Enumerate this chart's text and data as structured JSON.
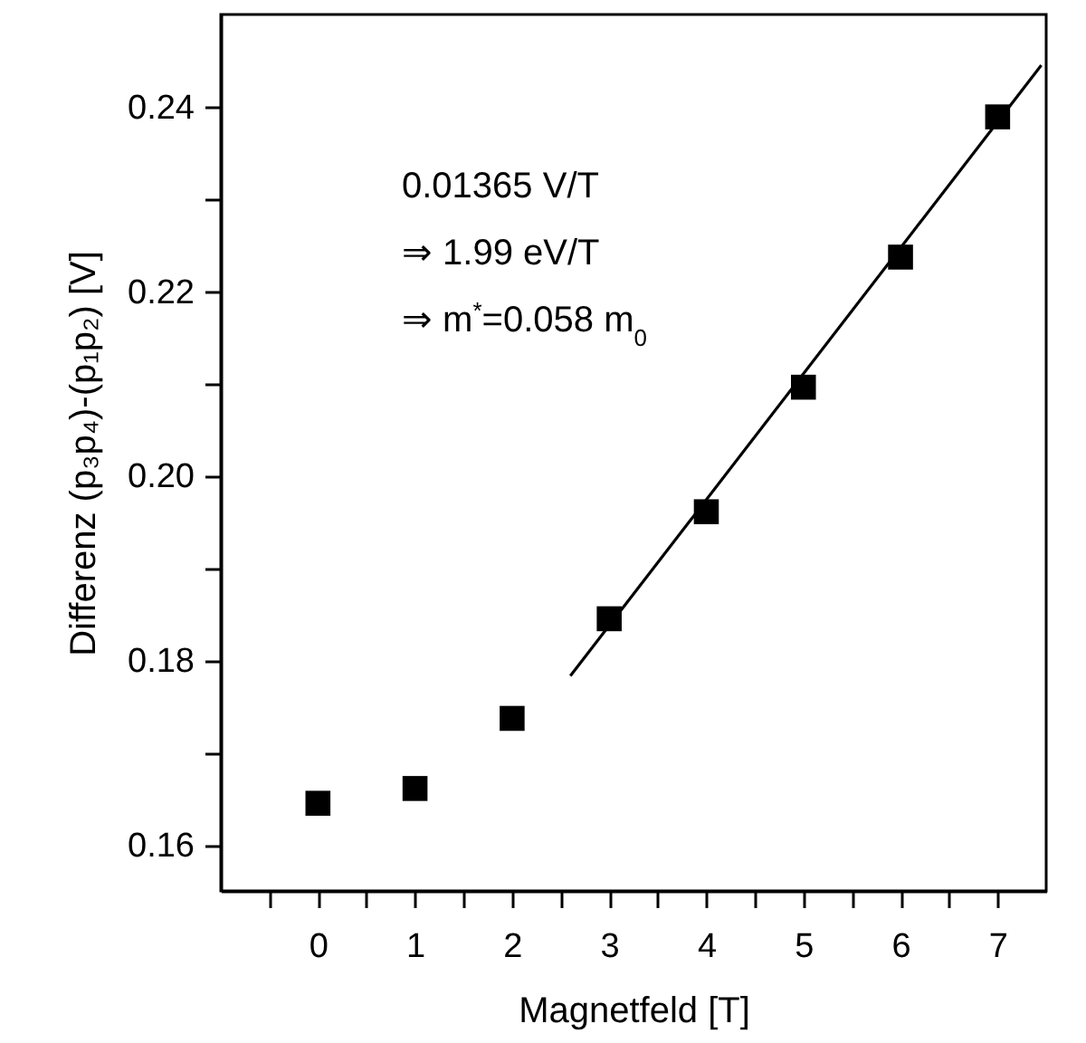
{
  "chart_data": {
    "type": "scatter",
    "xlabel": "Magnetfeld [T]",
    "ylabel": "Differenz (p₃p₄)-(p₁p₂) [V]",
    "x": [
      0,
      1,
      2,
      3,
      4,
      5,
      6,
      7
    ],
    "series": [
      {
        "type": "scatter",
        "color": "#000000",
        "marker": "square",
        "values": [
          0.1645,
          0.1661,
          0.1737,
          0.1845,
          0.1961,
          0.2096,
          0.2237,
          0.2389
        ]
      },
      {
        "type": "line",
        "color": "#000000",
        "marker": "none",
        "line_style": "solid",
        "x": [
          2.6,
          7.45
        ],
        "values": [
          0.1783,
          0.2445
        ]
      }
    ],
    "annotations": [
      "0.01365 V/T",
      "⇒ 1.99 eV/T",
      "⇒ m$^{*}$=0.058 m$_{0}$"
    ],
    "xlim": [
      -1,
      7.5
    ],
    "xticks": [
      {
        "value": -0.5,
        "label": null
      },
      {
        "value": 0,
        "label": "0"
      },
      {
        "value": 0.5,
        "label": null
      },
      {
        "value": 1,
        "label": "1"
      },
      {
        "value": 1.5,
        "label": null
      },
      {
        "value": 2,
        "label": "2"
      },
      {
        "value": 2.5,
        "label": null
      },
      {
        "value": 3,
        "label": "3"
      },
      {
        "value": 3.5,
        "label": null
      },
      {
        "value": 4,
        "label": "4"
      },
      {
        "value": 4.5,
        "label": null
      },
      {
        "value": 5,
        "label": "5"
      },
      {
        "value": 5.5,
        "label": null
      },
      {
        "value": 6,
        "label": "6"
      },
      {
        "value": 6.5,
        "label": null
      },
      {
        "value": 7,
        "label": "7"
      }
    ],
    "ylim": [
      0.155,
      0.25
    ],
    "yticks": [
      {
        "value": 0.16,
        "label": "0.16"
      },
      {
        "value": 0.17,
        "label": null
      },
      {
        "value": 0.18,
        "label": "0.18"
      },
      {
        "value": 0.19,
        "label": null
      },
      {
        "value": 0.2,
        "label": "0.20"
      },
      {
        "value": 0.21,
        "label": null
      },
      {
        "value": 0.22,
        "label": "0.22"
      },
      {
        "value": 0.23,
        "label": null
      },
      {
        "value": 0.24,
        "label": "0.24"
      }
    ],
    "grid": false
  }
}
